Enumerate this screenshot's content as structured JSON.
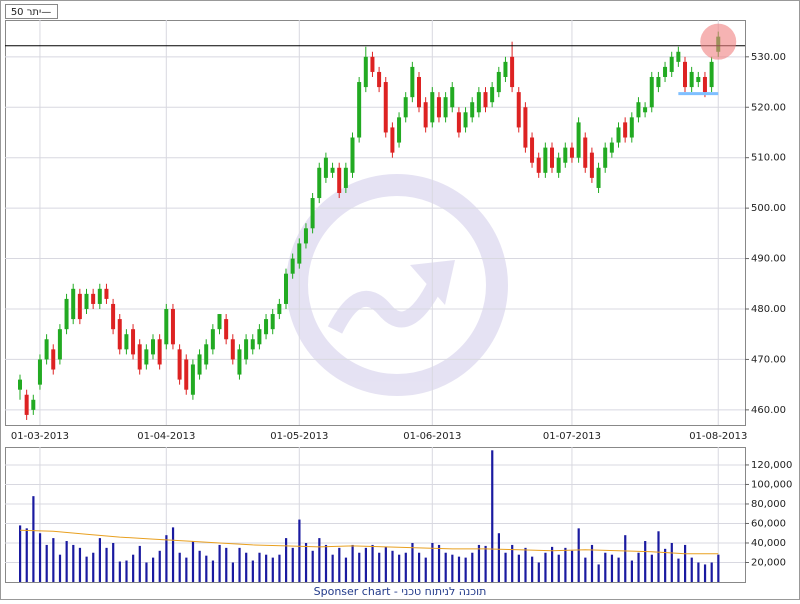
{
  "chart_data": {
    "type": "candlestick",
    "legend_label": "יתר 50—",
    "footer": "Sponser chart - תוכנה לניתוח טכני",
    "up_color": "#22aa22",
    "down_color": "#dd2222",
    "volume_color": "#1a1aa0",
    "ma_color": "#e8a020",
    "grid": true,
    "categories": [
      null,
      null,
      null,
      "01-03-2013",
      null,
      null,
      null,
      null,
      null,
      null,
      null,
      null,
      null,
      null,
      null,
      null,
      null,
      null,
      null,
      null,
      null,
      null,
      "01-04-2013",
      null,
      null,
      null,
      null,
      null,
      null,
      null,
      null,
      null,
      null,
      null,
      null,
      null,
      null,
      null,
      null,
      null,
      null,
      null,
      "01-05-2013",
      null,
      null,
      null,
      null,
      null,
      null,
      null,
      null,
      null,
      null,
      null,
      null,
      null,
      null,
      null,
      null,
      null,
      null,
      null,
      "01-06-2013",
      null,
      null,
      null,
      null,
      null,
      null,
      null,
      null,
      null,
      null,
      null,
      null,
      null,
      null,
      null,
      null,
      null,
      null,
      null,
      null,
      "01-07-2013",
      null,
      null,
      null,
      null,
      null,
      null,
      null,
      null,
      null,
      null,
      null,
      null,
      null,
      null,
      null,
      null,
      null,
      null,
      null,
      null,
      null,
      "01-08-2013"
    ],
    "ohlc": [
      [
        464,
        467,
        462,
        466
      ],
      [
        463,
        464,
        458,
        459
      ],
      [
        460,
        463,
        459,
        462
      ],
      [
        465,
        471,
        464,
        470
      ],
      [
        470,
        475,
        469,
        474
      ],
      [
        472,
        473,
        467,
        468
      ],
      [
        470,
        477,
        469,
        476
      ],
      [
        476,
        483,
        475,
        482
      ],
      [
        478,
        485,
        477,
        484
      ],
      [
        483,
        484,
        477,
        478
      ],
      [
        480,
        484,
        479,
        483
      ],
      [
        483,
        484,
        480,
        481
      ],
      [
        481,
        485,
        480,
        484
      ],
      [
        484,
        485,
        481,
        482
      ],
      [
        481,
        482,
        475,
        476
      ],
      [
        478,
        479,
        471,
        472
      ],
      [
        472,
        476,
        471,
        475
      ],
      [
        476,
        477,
        470,
        471
      ],
      [
        473,
        474,
        467,
        468
      ],
      [
        469,
        473,
        468,
        472
      ],
      [
        471,
        475,
        470,
        474
      ],
      [
        474,
        475,
        468,
        469
      ],
      [
        473,
        481,
        472,
        480
      ],
      [
        480,
        481,
        472,
        473
      ],
      [
        472,
        473,
        465,
        466
      ],
      [
        470,
        471,
        463,
        464
      ],
      [
        463,
        470,
        462,
        469
      ],
      [
        467,
        472,
        466,
        471
      ],
      [
        469,
        474,
        468,
        473
      ],
      [
        472,
        477,
        471,
        476
      ],
      [
        476,
        479,
        475,
        479
      ],
      [
        478,
        479,
        473,
        474
      ],
      [
        474,
        475,
        469,
        470
      ],
      [
        467,
        473,
        466,
        472
      ],
      [
        470,
        475,
        469,
        474
      ],
      [
        472,
        475,
        471,
        474
      ],
      [
        473,
        477,
        472,
        476
      ],
      [
        475,
        479,
        474,
        478
      ],
      [
        476,
        480,
        475,
        479
      ],
      [
        479,
        482,
        478,
        481
      ],
      [
        481,
        488,
        480,
        487
      ],
      [
        487,
        491,
        486,
        490
      ],
      [
        489,
        494,
        488,
        493
      ],
      [
        493,
        497,
        492,
        496
      ],
      [
        496,
        503,
        495,
        502
      ],
      [
        502,
        509,
        501,
        508
      ],
      [
        506,
        511,
        505,
        510
      ],
      [
        507,
        509,
        506,
        508
      ],
      [
        508,
        509,
        502,
        503
      ],
      [
        504,
        509,
        503,
        508
      ],
      [
        507,
        515,
        506,
        514
      ],
      [
        514,
        526,
        513,
        525
      ],
      [
        524,
        532,
        523,
        530
      ],
      [
        530,
        531,
        526,
        527
      ],
      [
        527,
        528,
        523,
        524
      ],
      [
        525,
        526,
        514,
        515
      ],
      [
        516,
        517,
        510,
        511
      ],
      [
        513,
        519,
        512,
        518
      ],
      [
        518,
        523,
        517,
        522
      ],
      [
        522,
        529,
        521,
        528
      ],
      [
        526,
        527,
        519,
        520
      ],
      [
        521,
        522,
        515,
        516
      ],
      [
        517,
        524,
        516,
        523
      ],
      [
        522,
        523,
        517,
        518
      ],
      [
        518,
        523,
        517,
        522
      ],
      [
        520,
        525,
        519,
        524
      ],
      [
        519,
        520,
        514,
        515
      ],
      [
        516,
        520,
        515,
        519
      ],
      [
        518,
        522,
        517,
        521
      ],
      [
        519,
        524,
        518,
        523
      ],
      [
        523,
        524,
        519,
        520
      ],
      [
        521,
        525,
        520,
        524
      ],
      [
        523,
        528,
        522,
        527
      ],
      [
        526,
        530,
        525,
        529
      ],
      [
        530,
        533,
        523,
        524
      ],
      [
        523,
        524,
        515,
        516
      ],
      [
        520,
        521,
        511,
        512
      ],
      [
        514,
        515,
        508,
        509
      ],
      [
        510,
        511,
        506,
        507
      ],
      [
        507,
        513,
        506,
        512
      ],
      [
        512,
        513,
        507,
        508
      ],
      [
        507,
        511,
        506,
        510
      ],
      [
        509,
        513,
        508,
        512
      ],
      [
        512,
        513,
        509,
        510
      ],
      [
        510,
        518,
        509,
        517
      ],
      [
        514,
        515,
        507,
        508
      ],
      [
        511,
        512,
        505,
        506
      ],
      [
        504,
        509,
        503,
        508
      ],
      [
        508,
        513,
        507,
        512
      ],
      [
        511,
        514,
        510,
        513
      ],
      [
        513,
        517,
        512,
        516
      ],
      [
        517,
        518,
        513,
        514
      ],
      [
        514,
        519,
        513,
        518
      ],
      [
        518,
        522,
        517,
        521
      ],
      [
        519,
        521,
        518,
        520
      ],
      [
        520,
        527,
        519,
        526
      ],
      [
        524,
        527,
        523,
        526
      ],
      [
        526,
        529,
        525,
        528
      ],
      [
        527,
        531,
        526,
        530
      ],
      [
        529,
        532,
        528,
        531
      ],
      [
        529,
        530,
        523,
        524
      ],
      [
        524,
        528,
        523,
        527
      ],
      [
        525,
        527,
        524,
        526
      ],
      [
        526,
        527,
        522,
        523
      ],
      [
        524,
        530,
        523,
        529
      ],
      [
        531,
        535,
        530,
        534
      ]
    ],
    "volumes": [
      58000,
      55000,
      88000,
      50000,
      38000,
      45000,
      28000,
      42000,
      38000,
      35000,
      26000,
      30000,
      45000,
      35000,
      40000,
      21000,
      22000,
      28000,
      37000,
      20000,
      25000,
      32000,
      48000,
      56000,
      30000,
      25000,
      42000,
      32000,
      27000,
      22000,
      38000,
      35000,
      20000,
      35000,
      30000,
      22000,
      30000,
      28000,
      25000,
      28000,
      45000,
      35000,
      64000,
      40000,
      32000,
      45000,
      38000,
      28000,
      35000,
      25000,
      38000,
      30000,
      35000,
      38000,
      30000,
      36000,
      32000,
      28000,
      30000,
      40000,
      30000,
      25000,
      40000,
      38000,
      30000,
      28000,
      26000,
      25000,
      30000,
      38000,
      37000,
      135000,
      50000,
      30000,
      38000,
      28000,
      35000,
      26000,
      20000,
      30000,
      36000,
      28000,
      35000,
      32000,
      55000,
      25000,
      38000,
      18000,
      30000,
      28000,
      25000,
      48000,
      22000,
      30000,
      42000,
      28000,
      52000,
      34000,
      40000,
      24000,
      38000,
      25000,
      20000,
      18000,
      20000,
      28000
    ],
    "volume_ma": {
      "x": [
        0,
        5,
        10,
        15,
        20,
        25,
        30,
        35,
        40,
        45,
        50,
        55,
        60,
        65,
        70,
        75,
        80,
        85,
        90,
        95,
        100,
        105
      ],
      "values": [
        53000,
        52000,
        49000,
        46000,
        44000,
        42000,
        40000,
        38000,
        37000,
        36000,
        37000,
        36000,
        35000,
        34000,
        34000,
        33000,
        32000,
        33000,
        32000,
        31000,
        29000,
        29000
      ]
    },
    "ylim": [
      457,
      537.3
    ],
    "yticks": [
      {
        "value": 460,
        "label": "460.00"
      },
      {
        "value": 470,
        "label": "470.00"
      },
      {
        "value": 480,
        "label": "480.00"
      },
      {
        "value": 490,
        "label": "490.00"
      },
      {
        "value": 500,
        "label": "500.00"
      },
      {
        "value": 510,
        "label": "510.00"
      },
      {
        "value": 520,
        "label": "520.00"
      },
      {
        "value": 530,
        "label": "530.00"
      }
    ],
    "y2lim": [
      0,
      138400
    ],
    "y2ticks": [
      {
        "value": 20000,
        "label": "20,000"
      },
      {
        "value": 40000,
        "label": "40,000"
      },
      {
        "value": 60000,
        "label": "60,000"
      },
      {
        "value": 80000,
        "label": "80,000"
      },
      {
        "value": 100000,
        "label": "100,000"
      },
      {
        "value": 120000,
        "label": "120,000"
      }
    ],
    "reference_line": {
      "value": 532.2,
      "color": "#000000"
    },
    "support_line": {
      "value": 522.7,
      "from": 99,
      "to": 105,
      "color": "#7fbfff"
    },
    "highlight": {
      "index": 105,
      "value": 533,
      "color": "#f08080"
    }
  }
}
